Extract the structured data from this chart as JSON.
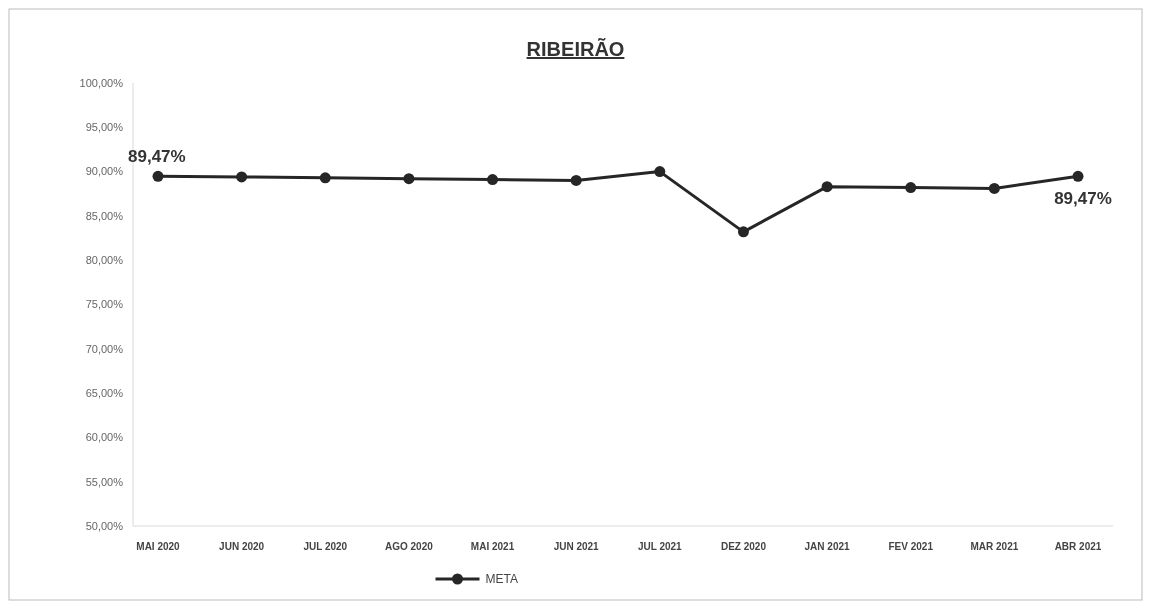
{
  "chart_data": {
    "type": "line",
    "title": "RIBEIRÃO",
    "categories": [
      "MAI 2020",
      "JUN 2020",
      "JUL 2020",
      "AGO 2020",
      "MAI 2021",
      "JUN 2021",
      "JUL 2021",
      "DEZ 2020",
      "JAN 2021",
      "FEV 2021",
      "MAR 2021",
      "ABR 2021"
    ],
    "series": [
      {
        "name": "META",
        "color": "#262626",
        "values": [
          89.47,
          89.4,
          89.3,
          89.2,
          89.1,
          89.0,
          90.0,
          83.2,
          88.3,
          88.2,
          88.1,
          89.47
        ],
        "value_labels": [
          "89,47%",
          null,
          null,
          null,
          null,
          null,
          null,
          null,
          null,
          null,
          null,
          "89,47%"
        ]
      }
    ],
    "ylim": [
      50,
      100
    ],
    "yticks": [
      {
        "value": 50,
        "label": "50,00%"
      },
      {
        "value": 55,
        "label": "55,00%"
      },
      {
        "value": 60,
        "label": "60,00%"
      },
      {
        "value": 65,
        "label": "65,00%"
      },
      {
        "value": 70,
        "label": "70,00%"
      },
      {
        "value": 75,
        "label": "75,00%"
      },
      {
        "value": 80,
        "label": "80,00%"
      },
      {
        "value": 85,
        "label": "85,00%"
      },
      {
        "value": 90,
        "label": "90,00%"
      },
      {
        "value": 95,
        "label": "95,00%"
      },
      {
        "value": 100,
        "label": "100,00%"
      }
    ],
    "grid": false,
    "legend": "bottom",
    "marker": "circle",
    "line_style": "solid"
  }
}
